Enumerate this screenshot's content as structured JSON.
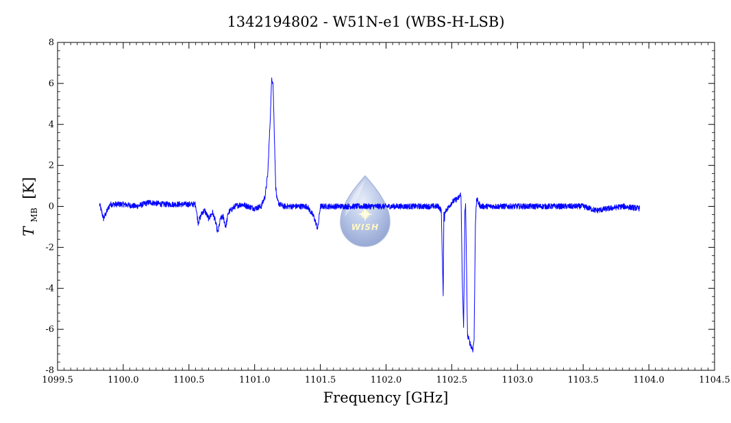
{
  "chart_data": {
    "type": "line",
    "title": "1342194802 - W51N-e1 (WBS-H-LSB)",
    "xlabel": "Frequency [GHz]",
    "ylabel_main": "T",
    "ylabel_sub": "MB",
    "ylabel_unit": "[K]",
    "xlim": [
      1099.5,
      1104.5
    ],
    "ylim": [
      -8,
      8
    ],
    "x_ticks": [
      "1099.5",
      "1100.0",
      "1100.5",
      "1101.0",
      "1101.5",
      "1102.0",
      "1102.5",
      "1103.0",
      "1103.5",
      "1104.0",
      "1104.5"
    ],
    "y_ticks": [
      "-8",
      "-6",
      "-4",
      "-2",
      "0",
      "2",
      "4",
      "6",
      "8"
    ],
    "grid": false,
    "series": [
      {
        "color": "#0000ff",
        "x": [
          1099.82,
          1099.85,
          1099.9,
          1100.0,
          1100.1,
          1100.2,
          1100.3,
          1100.4,
          1100.5,
          1100.55,
          1100.57,
          1100.6,
          1100.62,
          1100.65,
          1100.68,
          1100.7,
          1100.72,
          1100.74,
          1100.76,
          1100.78,
          1100.8,
          1100.85,
          1100.9,
          1101.0,
          1101.05,
          1101.08,
          1101.1,
          1101.12,
          1101.13,
          1101.14,
          1101.15,
          1101.16,
          1101.17,
          1101.19,
          1101.22,
          1101.3,
          1101.4,
          1101.45,
          1101.48,
          1101.5,
          1101.55,
          1101.7,
          1101.9,
          1102.1,
          1102.3,
          1102.4,
          1102.42,
          1102.435,
          1102.44,
          1102.445,
          1102.45,
          1102.47,
          1102.5,
          1102.55,
          1102.57,
          1102.58,
          1102.59,
          1102.6,
          1102.605,
          1102.62,
          1102.64,
          1102.66,
          1102.67,
          1102.68,
          1102.69,
          1102.7,
          1102.72,
          1102.8,
          1103.0,
          1103.2,
          1103.4,
          1103.5,
          1103.6,
          1103.8,
          1103.93
        ],
        "values": [
          0.1,
          -0.6,
          0.1,
          0.1,
          0.0,
          0.2,
          0.1,
          0.1,
          0.1,
          0.1,
          -0.8,
          -0.3,
          -0.2,
          -0.6,
          -0.3,
          -0.7,
          -1.3,
          -0.6,
          -0.5,
          -1.0,
          -0.3,
          0.0,
          0.1,
          -0.1,
          0.0,
          0.5,
          1.6,
          4.5,
          6.3,
          6.0,
          3.5,
          1.0,
          0.3,
          0.1,
          0.0,
          0.0,
          0.0,
          -0.5,
          -1.1,
          0.0,
          0.0,
          0.0,
          0.0,
          0.0,
          0.0,
          0.0,
          -0.2,
          -4.3,
          -0.3,
          -0.6,
          -0.2,
          -0.1,
          0.2,
          0.4,
          0.6,
          -3.5,
          -6.0,
          -0.3,
          0.2,
          -6.3,
          -6.7,
          -7.0,
          -6.5,
          -0.8,
          0.4,
          0.2,
          0.0,
          0.0,
          0.0,
          0.0,
          0.0,
          0.0,
          -0.2,
          0.0,
          -0.1
        ]
      }
    ]
  }
}
